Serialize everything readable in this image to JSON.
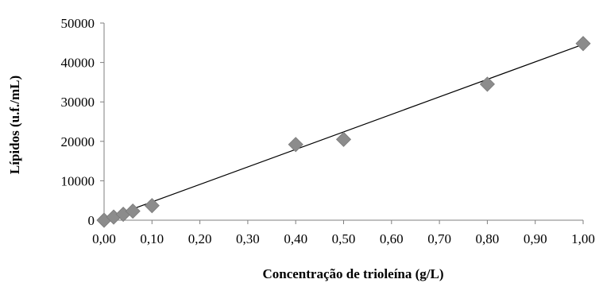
{
  "chart_data": {
    "type": "scatter",
    "title": "",
    "xlabel": "Concentração de trioleína (g/L)",
    "ylabel": "Lípidos (u.f./mL)",
    "xlim": [
      0,
      1
    ],
    "ylim": [
      0,
      50000
    ],
    "x_ticks": [
      "0,00",
      "0,10",
      "0,20",
      "0,30",
      "0,40",
      "0,50",
      "0,60",
      "0,70",
      "0,80",
      "0,90",
      "1,00"
    ],
    "y_ticks": [
      "0",
      "10000",
      "20000",
      "30000",
      "40000",
      "50000"
    ],
    "grid": false,
    "legend": "none",
    "series": [
      {
        "marker": "diamond",
        "color": "#8c8c8c",
        "points": [
          {
            "x": 0.0,
            "y": 0
          },
          {
            "x": 0.02,
            "y": 800
          },
          {
            "x": 0.04,
            "y": 1500
          },
          {
            "x": 0.06,
            "y": 2300
          },
          {
            "x": 0.1,
            "y": 3700
          },
          {
            "x": 0.4,
            "y": 19200
          },
          {
            "x": 0.5,
            "y": 20500
          },
          {
            "x": 0.8,
            "y": 34500
          },
          {
            "x": 1.0,
            "y": 44800
          }
        ]
      }
    ],
    "trendline": {
      "type": "linear",
      "color": "#000000",
      "x0": 0.0,
      "y0": 200,
      "x1": 1.0,
      "y1": 44600
    }
  }
}
